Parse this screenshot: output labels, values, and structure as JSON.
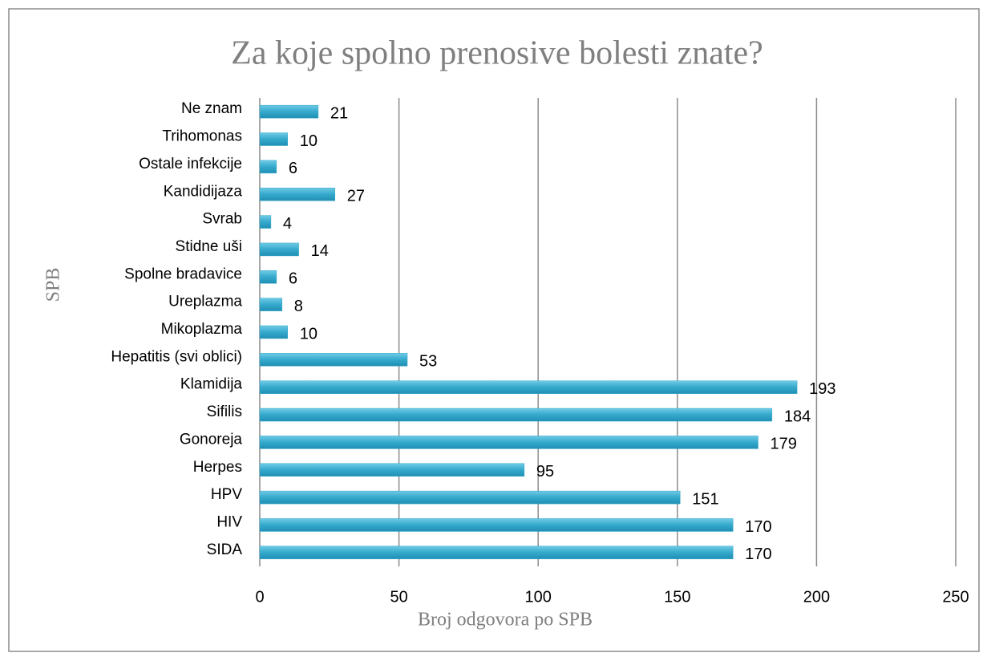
{
  "chart_data": {
    "type": "bar",
    "orientation": "horizontal",
    "title": "Za koje spolno prenosive bolesti znate?",
    "xlabel": "Broj odgovora po SPB",
    "ylabel": "SPB",
    "categories": [
      "Ne znam",
      "Trihomonas",
      "Ostale infekcije",
      "Kandidijaza",
      "Svrab",
      "Stidne uši",
      "Spolne bradavice",
      "Ureplazma",
      "Mikoplazma",
      "Hepatitis (svi oblici)",
      "Klamidija",
      "Sifilis",
      "Gonoreja",
      "Herpes",
      "HPV",
      "HIV",
      "SIDA"
    ],
    "values": [
      21,
      10,
      6,
      27,
      4,
      14,
      6,
      8,
      10,
      53,
      193,
      184,
      179,
      95,
      151,
      170,
      170
    ],
    "color": "#35a9cc",
    "xlim": [
      0,
      250
    ],
    "xticks": [
      0,
      50,
      100,
      150,
      200,
      250
    ],
    "grid": true
  }
}
